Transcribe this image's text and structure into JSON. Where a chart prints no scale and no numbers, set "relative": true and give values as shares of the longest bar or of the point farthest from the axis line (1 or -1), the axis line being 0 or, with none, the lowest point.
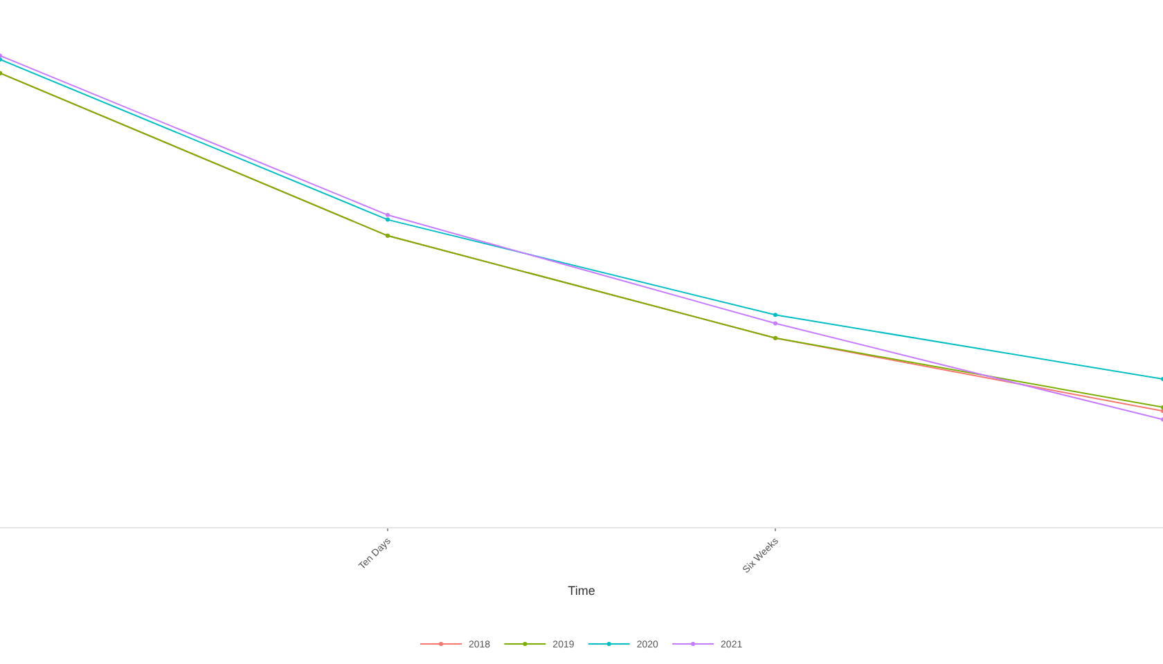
{
  "chart_data": {
    "type": "line",
    "relative": true,
    "xlabel": "Time",
    "categories": [
      null,
      "Ten Days",
      "Six Weeks",
      null
    ],
    "series": [
      {
        "name": "2018",
        "color": "#f8766d",
        "values": [
          0.963,
          0.618,
          0.401,
          0.246
        ]
      },
      {
        "name": "2019",
        "color": "#7cae00",
        "values": [
          0.963,
          0.618,
          0.401,
          0.254
        ]
      },
      {
        "name": "2020",
        "color": "#00bfc4",
        "values": [
          0.992,
          0.652,
          0.45,
          0.314
        ]
      },
      {
        "name": "2021",
        "color": "#c77cff",
        "values": [
          1,
          0.662,
          0.432,
          0.228
        ]
      }
    ],
    "legend": "bottom",
    "marker": "circle",
    "line_style": "solid"
  }
}
